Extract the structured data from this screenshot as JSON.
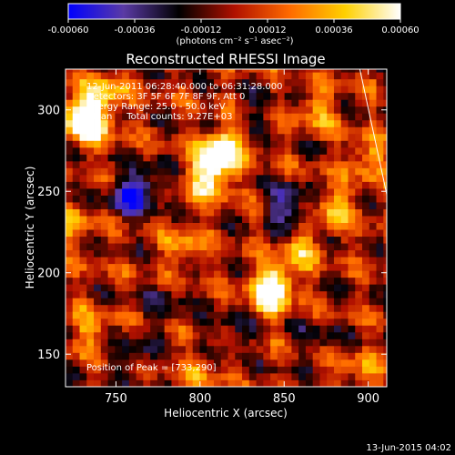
{
  "chart_data": {
    "type": "heatmap",
    "title": "Reconstructed RHESSI Image",
    "xlabel": "Heliocentric X (arcsec)",
    "ylabel": "Heliocentric Y (arcsec)",
    "xlim": [
      720,
      911
    ],
    "ylim": [
      130,
      325
    ],
    "x_ticks": [
      750,
      800,
      850,
      900
    ],
    "y_ticks": [
      150,
      200,
      250,
      300
    ],
    "colorbar": {
      "min": -0.0006,
      "max": 0.0006,
      "ticks": [
        "-0.00060",
        "-0.00036",
        "-0.00012",
        "0.00012",
        "0.00036",
        "0.00060"
      ],
      "unit_label": "(photons cm⁻² s⁻¹ asec⁻²)",
      "colormap": [
        "#0000ff",
        "#5a3aa5",
        "#000000",
        "#b01000",
        "#ff6a00",
        "#ffd000",
        "#ffffff"
      ]
    },
    "annotations": [
      "12-Jun-2011 06:28:40.000 to 06:31:28.000",
      "Detectors: 3F 5F 6F 7F 8F 9F, Att 0",
      "Energy Range: 25.0 - 50.0 keV",
      "Clean     Total counts: 9.27E+03"
    ],
    "peak_label": "Position of Peak = [733,290]",
    "peak": [
      733,
      290
    ],
    "limb_line": [
      [
        895,
        325
      ],
      [
        911,
        248
      ]
    ],
    "features": [
      {
        "x": 765,
        "y": 252,
        "value": -0.00045
      },
      {
        "x": 755,
        "y": 245,
        "value": -0.0003
      },
      {
        "x": 850,
        "y": 245,
        "value": -0.0003
      },
      {
        "x": 855,
        "y": 235,
        "value": -0.00025
      },
      {
        "x": 808,
        "y": 268,
        "value": 0.00055
      },
      {
        "x": 815,
        "y": 278,
        "value": 0.0005
      },
      {
        "x": 805,
        "y": 255,
        "value": 0.0004
      },
      {
        "x": 733,
        "y": 290,
        "value": 0.0006
      },
      {
        "x": 730,
        "y": 300,
        "value": 0.0005
      },
      {
        "x": 745,
        "y": 310,
        "value": 0.0004
      },
      {
        "x": 845,
        "y": 195,
        "value": 0.0005
      },
      {
        "x": 840,
        "y": 185,
        "value": 0.00045
      },
      {
        "x": 860,
        "y": 215,
        "value": 0.00035
      },
      {
        "x": 880,
        "y": 240,
        "value": 0.0004
      },
      {
        "x": 900,
        "y": 270,
        "value": 0.00035
      },
      {
        "x": 790,
        "y": 215,
        "value": 0.0003
      },
      {
        "x": 725,
        "y": 230,
        "value": 0.0003
      },
      {
        "x": 735,
        "y": 165,
        "value": 0.0003
      },
      {
        "x": 780,
        "y": 180,
        "value": -0.0002
      },
      {
        "x": 760,
        "y": 150,
        "value": -0.00025
      },
      {
        "x": 820,
        "y": 165,
        "value": -0.00025
      },
      {
        "x": 800,
        "y": 140,
        "value": 0.0002
      },
      {
        "x": 870,
        "y": 160,
        "value": -0.0002
      },
      {
        "x": 895,
        "y": 140,
        "value": 0.00025
      },
      {
        "x": 835,
        "y": 300,
        "value": -0.00015
      },
      {
        "x": 870,
        "y": 300,
        "value": 0.0003
      }
    ]
  },
  "footer_timestamp": "13-Jun-2015 04:02"
}
